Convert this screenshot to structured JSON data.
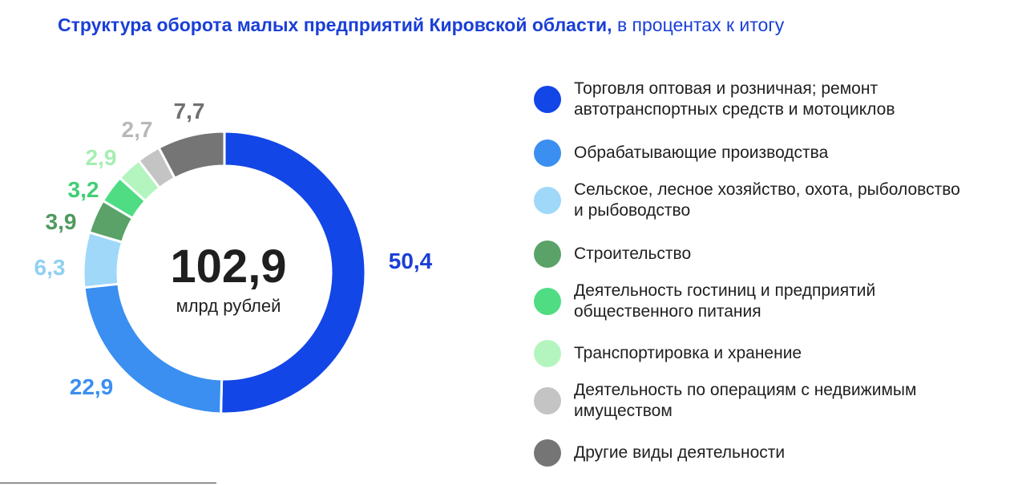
{
  "title": {
    "bold": "Структура оборота малых предприятий  Кировской области,",
    "normal": " в процентах к итогу"
  },
  "center": {
    "value": "102,9",
    "unit": "млрд рублей"
  },
  "chart_data": {
    "type": "pie",
    "donut": true,
    "title": "Структура оборота малых предприятий  Кировской области, в процентах к итогу",
    "total_label": "102,9 млрд рублей",
    "slices": [
      {
        "name": "Торговля оптовая и розничная; ремонт автотранспортных средств и мотоциклов",
        "value": 50.4,
        "label": "50,4",
        "color": "#1346e6",
        "label_color": "#1a3fd6"
      },
      {
        "name": "Обрабатывающие производства",
        "value": 22.9,
        "label": "22,9",
        "color": "#3a8ff0",
        "label_color": "#3a8ff0"
      },
      {
        "name": "Сельское, лесное хозяйство, охота, рыболовство и рыбоводство",
        "value": 6.3,
        "label": "6,3",
        "color": "#9fd8f9",
        "label_color": "#8fd0f5"
      },
      {
        "name": "Строительство",
        "value": 3.9,
        "label": "3,9",
        "color": "#5aa268",
        "label_color": "#4e9a5e"
      },
      {
        "name": "Деятельность гостиниц и предприятий общественного питания",
        "value": 3.2,
        "label": "3,2",
        "color": "#4fdc83",
        "label_color": "#3fcf74"
      },
      {
        "name": "Транспортировка и хранение",
        "value": 2.9,
        "label": "2,9",
        "color": "#b4f5bf",
        "label_color": "#a6eeb3"
      },
      {
        "name": "Деятельность по операциям с недвижимым имуществом",
        "value": 2.7,
        "label": "2,7",
        "color": "#c4c4c4",
        "label_color": "#b8b8b8"
      },
      {
        "name": "Другие виды деятельности",
        "value": 7.7,
        "label": "7,7",
        "color": "#757575",
        "label_color": "#707070"
      }
    ],
    "legend": "right"
  },
  "legend": [
    [
      "Торговля оптовая и розничная; ремонт",
      "автотранспортных средств и мотоциклов"
    ],
    [
      "Обрабатывающие производства"
    ],
    [
      "Сельское, лесное хозяйство, охота, рыболовство",
      "и рыбоводство"
    ],
    [
      "Строительство"
    ],
    [
      "Деятельность гостиниц и предприятий",
      "общественного питания"
    ],
    [
      "Транспортировка и хранение"
    ],
    [
      "Деятельность по операциям с недвижимым",
      "имуществом"
    ],
    [
      "Другие виды деятельности"
    ]
  ]
}
